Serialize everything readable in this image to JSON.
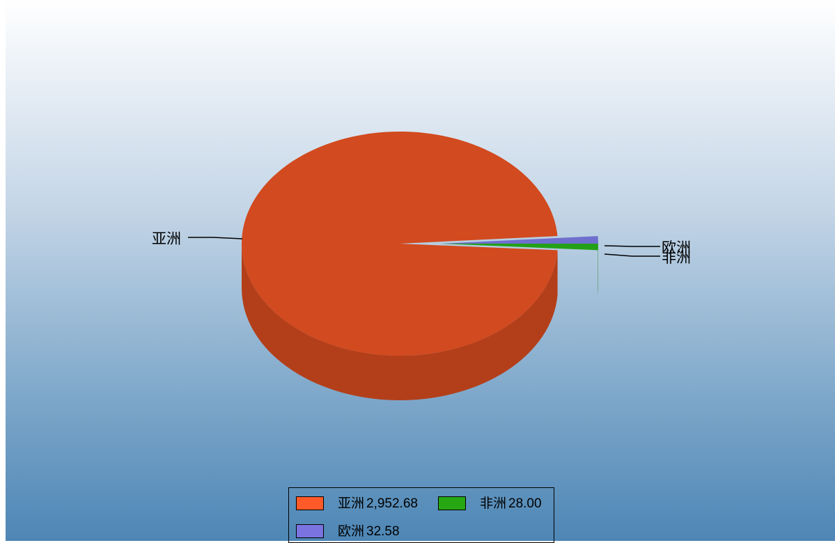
{
  "chart_data": {
    "type": "pie",
    "style": "3d",
    "slices": [
      {
        "label": "亚洲",
        "value": 2952.68,
        "value_text": "2,952.68",
        "color": "#d24a1f",
        "legend_color": "#ff5a28"
      },
      {
        "label": "非洲",
        "value": 28.0,
        "value_text": "28.00",
        "color": "#23a017",
        "legend_color": "#27a813"
      },
      {
        "label": "欧洲",
        "value": 32.58,
        "value_text": "32.58",
        "color": "#6f6fcd",
        "legend_color": "#7b74e0"
      }
    ],
    "legend_placement": "bottom-center"
  }
}
